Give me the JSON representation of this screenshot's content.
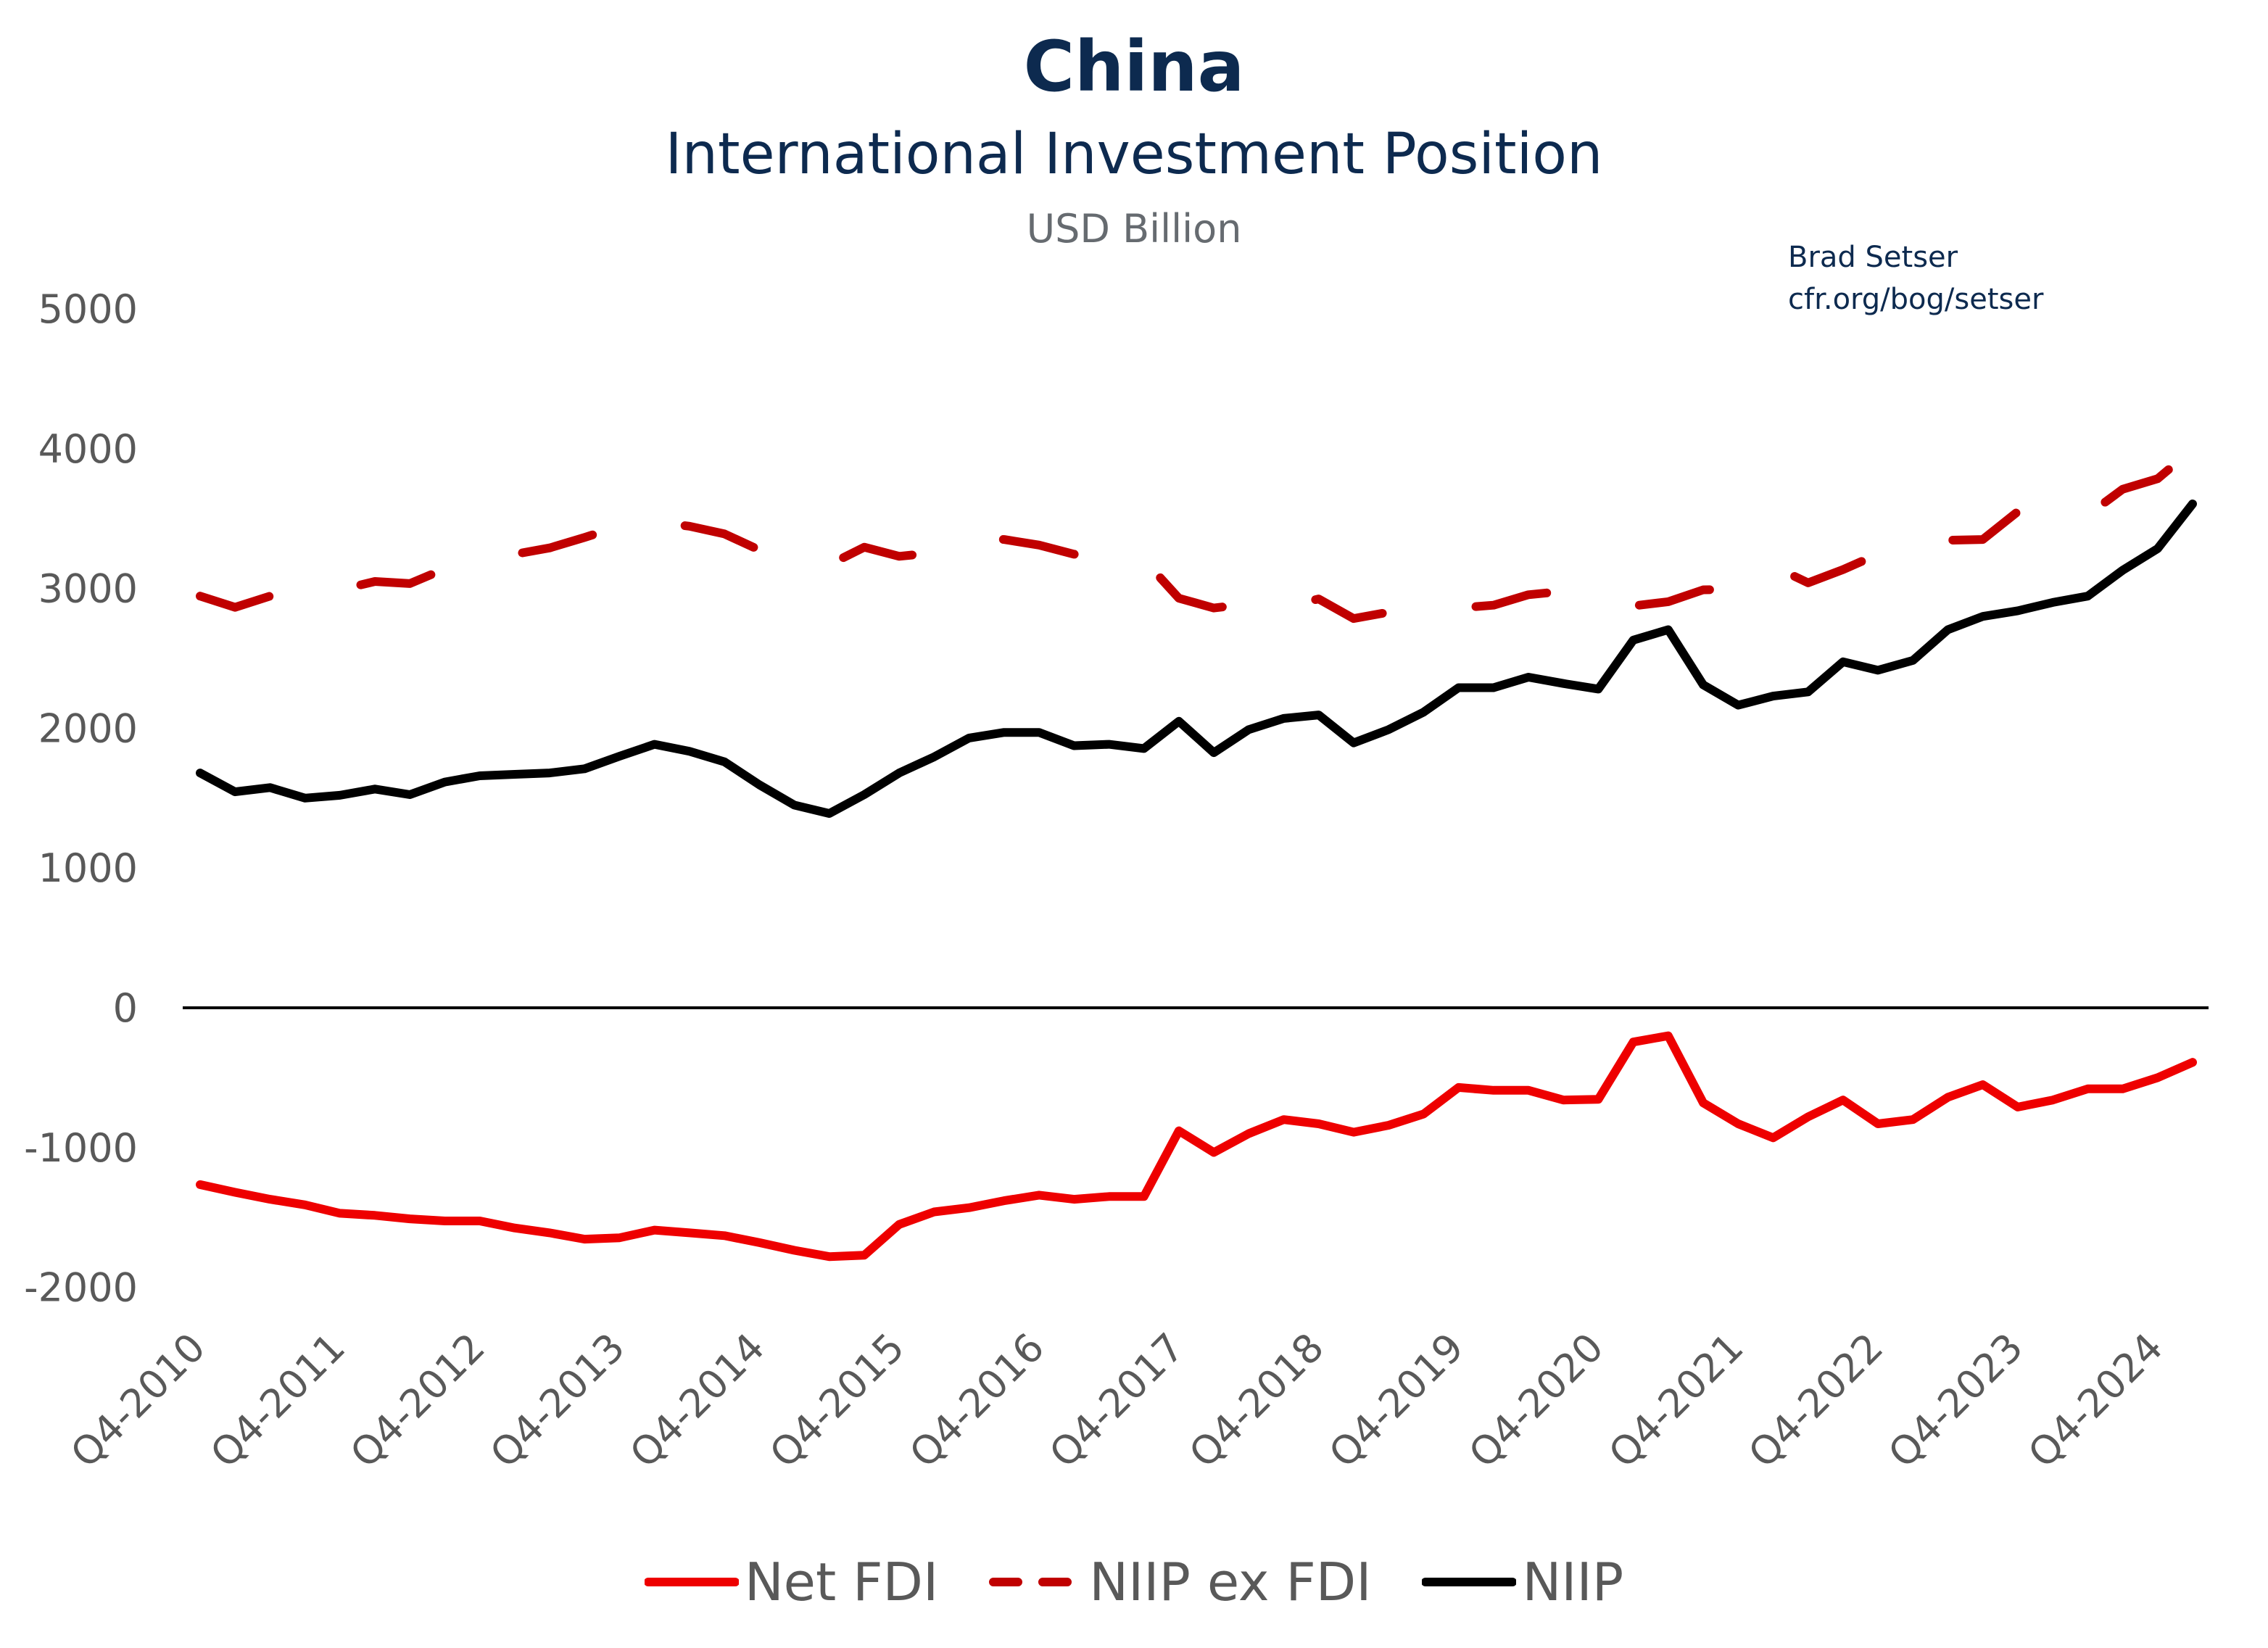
{
  "header": {
    "title": "China",
    "subtitle": "International Investment Position",
    "units": "USD Billion"
  },
  "credit": {
    "author": "Brad Setser",
    "site": "cfr.org/bog/setser"
  },
  "colors": {
    "net_fdi": "#ee0000",
    "niip_ex_fdi": "#c00000",
    "niip": "#000000",
    "title": "#0d2a4f"
  },
  "chart_data": {
    "type": "line",
    "title": "China International Investment Position",
    "ylabel": "USD Billion",
    "xlabel": "",
    "ylim": [
      -2000,
      5000
    ],
    "yticks": [
      5000,
      4000,
      3000,
      2000,
      1000,
      0,
      -1000,
      -2000
    ],
    "xtick_labels": [
      "Q4-2010",
      "Q4-2011",
      "Q4-2012",
      "Q4-2013",
      "Q4-2014",
      "Q4-2015",
      "Q4-2016",
      "Q4-2017",
      "Q4-2018",
      "Q4-2019",
      "Q4-2020",
      "Q4-2021",
      "Q4-2022",
      "Q4-2023",
      "Q4-2024"
    ],
    "categories": [
      "Q4-2010",
      "Q1-2011",
      "Q2-2011",
      "Q3-2011",
      "Q4-2011",
      "Q1-2012",
      "Q2-2012",
      "Q3-2012",
      "Q4-2012",
      "Q1-2013",
      "Q2-2013",
      "Q3-2013",
      "Q4-2013",
      "Q1-2014",
      "Q2-2014",
      "Q3-2014",
      "Q4-2014",
      "Q1-2015",
      "Q2-2015",
      "Q3-2015",
      "Q4-2015",
      "Q1-2016",
      "Q2-2016",
      "Q3-2016",
      "Q4-2016",
      "Q1-2017",
      "Q2-2017",
      "Q3-2017",
      "Q4-2017",
      "Q1-2018",
      "Q2-2018",
      "Q3-2018",
      "Q4-2018",
      "Q1-2019",
      "Q2-2019",
      "Q3-2019",
      "Q4-2019",
      "Q1-2020",
      "Q2-2020",
      "Q3-2020",
      "Q4-2020",
      "Q1-2021",
      "Q2-2021",
      "Q3-2021",
      "Q4-2021",
      "Q1-2022",
      "Q2-2022",
      "Q3-2022",
      "Q4-2022",
      "Q1-2023",
      "Q2-2023",
      "Q3-2023",
      "Q4-2023",
      "Q1-2024",
      "Q2-2024",
      "Q3-2024",
      "Q4-2024",
      "Q1-2025"
    ],
    "legend_position": "bottom",
    "series": [
      {
        "name": "Net FDI",
        "style": "solid",
        "values": [
          -1265,
          -1320,
          -1370,
          -1410,
          -1470,
          -1485,
          -1510,
          -1525,
          -1525,
          -1575,
          -1610,
          -1655,
          -1645,
          -1590,
          -1610,
          -1630,
          -1680,
          -1735,
          -1780,
          -1770,
          -1550,
          -1460,
          -1430,
          -1380,
          -1340,
          -1370,
          -1350,
          -1350,
          -880,
          -1035,
          -900,
          -800,
          -830,
          -890,
          -840,
          -760,
          -570,
          -590,
          -590,
          -660,
          -655,
          -245,
          -200,
          -680,
          -830,
          -930,
          -780,
          -660,
          -830,
          -800,
          -640,
          -550,
          -710,
          -660,
          -580,
          -580,
          -500,
          -390
        ]
      },
      {
        "name": "NIIP ex FDI",
        "style": "dashed",
        "values": [
          2945,
          2865,
          2945,
          2910,
          2990,
          3050,
          3035,
          3140,
          3185,
          3245,
          3290,
          3365,
          3445,
          3475,
          3445,
          3390,
          3275,
          3185,
          3170,
          3295,
          3230,
          3255,
          3360,
          3350,
          3310,
          3245,
          3235,
          3205,
          2930,
          2860,
          2890,
          2870,
          2925,
          2785,
          2830,
          2875,
          2860,
          2880,
          2955,
          2980,
          2935,
          2875,
          2905,
          2990,
          2995,
          3160,
          3040,
          3135,
          3245,
          3285,
          3345,
          3350,
          3550,
          3560,
          3525,
          3710,
          3785,
          3995
        ]
      },
      {
        "name": "NIIP",
        "style": "solid",
        "values": [
          1680,
          1545,
          1575,
          1500,
          1520,
          1565,
          1525,
          1615,
          1660,
          1670,
          1680,
          1710,
          1800,
          1885,
          1835,
          1760,
          1595,
          1450,
          1390,
          1525,
          1680,
          1795,
          1930,
          1970,
          1970,
          1875,
          1885,
          1855,
          2050,
          1825,
          1990,
          2070,
          2095,
          1895,
          1990,
          2115,
          2290,
          2290,
          2365,
          2320,
          2280,
          2630,
          2705,
          2310,
          2165,
          2230,
          2260,
          2475,
          2415,
          2485,
          2705,
          2800,
          2840,
          2900,
          2945,
          3130,
          3285,
          3605
        ]
      }
    ]
  }
}
